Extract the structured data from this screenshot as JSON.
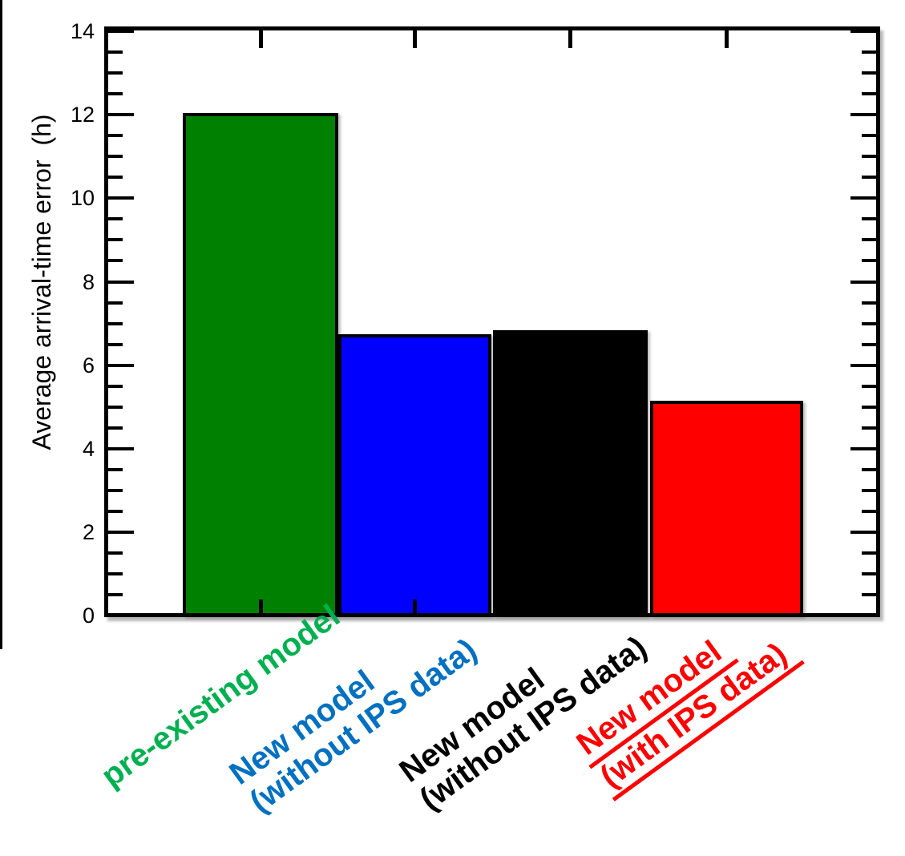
{
  "chart_data": {
    "type": "bar",
    "title": "",
    "xlabel": "",
    "ylabel": "Average arrival-time error  (h)",
    "ylim": [
      0,
      14.2
    ],
    "y_major_ticks": [
      0,
      2,
      4,
      6,
      8,
      10,
      12,
      14
    ],
    "y_minor_step": 0.5,
    "grid": false,
    "legend": "none",
    "categories": [
      [
        "pre-existing model"
      ],
      [
        "New model",
        "(without IPS data)"
      ],
      [
        "New model",
        "(without IPS data)"
      ],
      [
        "New model",
        "(with IPS data)"
      ]
    ],
    "values": [
      12.0,
      6.7,
      6.8,
      5.1
    ],
    "bar_colors": [
      "#008000",
      "#0000ff",
      "#000000",
      "#ff0000"
    ],
    "label_colors": [
      "#00b050",
      "#0070c0",
      "#000000",
      "#ff0000"
    ],
    "label_underline": [
      false,
      false,
      false,
      true
    ],
    "axis_color": "#000000",
    "background_color": "#ffffff"
  }
}
